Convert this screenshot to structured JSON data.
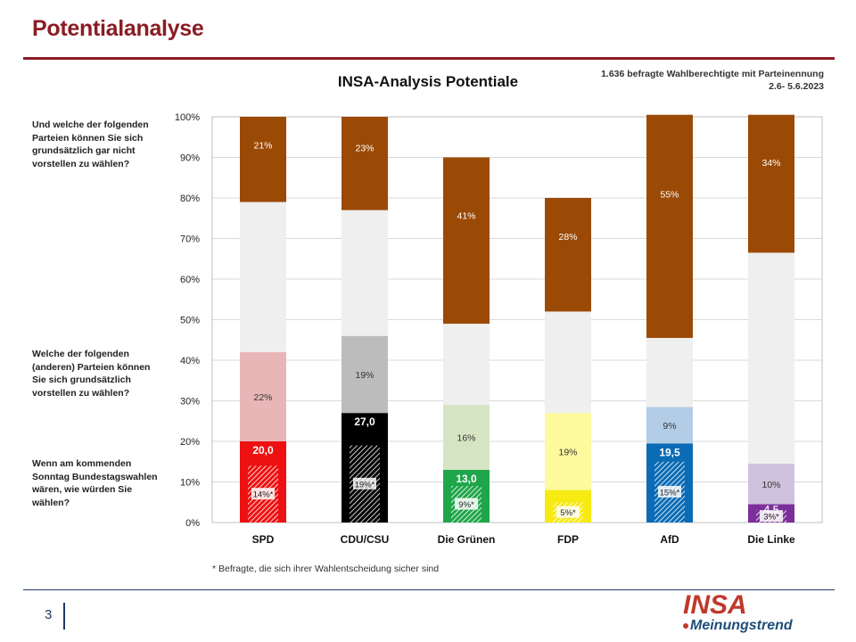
{
  "page": {
    "title": "Potentialanalyse",
    "number": "3"
  },
  "note": {
    "line1": "1.636 befragte Wahlberechtigte mit Parteinennung",
    "line2": "2.6- 5.6.2023"
  },
  "questions": {
    "q1": "Und welche der folgenden Parteien können Sie sich grundsätzlich  gar nicht vorstellen zu wählen?",
    "q2": "Welche der folgenden (anderen) Parteien können Sie sich  grundsätzlich vorstellen zu wählen?",
    "q3": "Wenn am kommenden Sonntag Bundestagswahlen wären, wie würden Sie wählen?"
  },
  "footnote": "* Befragte, die sich ihrer Wahlentscheidung sicher sind",
  "logo": {
    "brand": "INSA",
    "sub": "Meinungstrend"
  },
  "chart_data": {
    "type": "bar",
    "stacked": true,
    "title": "INSA-Analysis Potentiale",
    "categories": [
      "SPD",
      "CDU/CSU",
      "Die Grünen",
      "FDP",
      "AfD",
      "Die Linke"
    ],
    "ylim": [
      0,
      100
    ],
    "yticks": [
      "0%",
      "10%",
      "20%",
      "30%",
      "40%",
      "50%",
      "60%",
      "70%",
      "80%",
      "90%",
      "100%"
    ],
    "grid": true,
    "series": [
      {
        "values": [
          20.0,
          27.0,
          13.0,
          8.0,
          19.5,
          4.5
        ],
        "labels": [
          "20,0",
          "27,0",
          "13,0",
          "8,0",
          "19,5",
          "4,5"
        ],
        "colors": [
          "#ee1111",
          "#000000",
          "#1fa64a",
          "#f7ea12",
          "#0b6bb5",
          "#7b2f9b"
        ]
      },
      {
        "values": [
          22,
          19,
          16,
          19,
          9,
          10
        ],
        "labels": [
          "22%",
          "19%",
          "16%",
          "19%",
          "9%",
          "10%"
        ],
        "colors": [
          "#e8b6b7",
          "#bcbcbc",
          "#d5e5c4",
          "#fcfa9c",
          "#b3cde6",
          "#cfc2de"
        ]
      },
      {
        "values": [
          37,
          31,
          20,
          25,
          17,
          52
        ],
        "color": "#efefef"
      },
      {
        "values": [
          21,
          23,
          41,
          28,
          55,
          34
        ],
        "labels": [
          "21%",
          "23%",
          "41%",
          "28%",
          "55%",
          "34%"
        ],
        "color": "#9b4a06"
      }
    ],
    "sure_voters": {
      "values": [
        14,
        19,
        9,
        5,
        15,
        3
      ],
      "labels": [
        "14%*",
        "19%*",
        "9%*",
        "5%*",
        "15%*",
        "3%*"
      ]
    }
  }
}
